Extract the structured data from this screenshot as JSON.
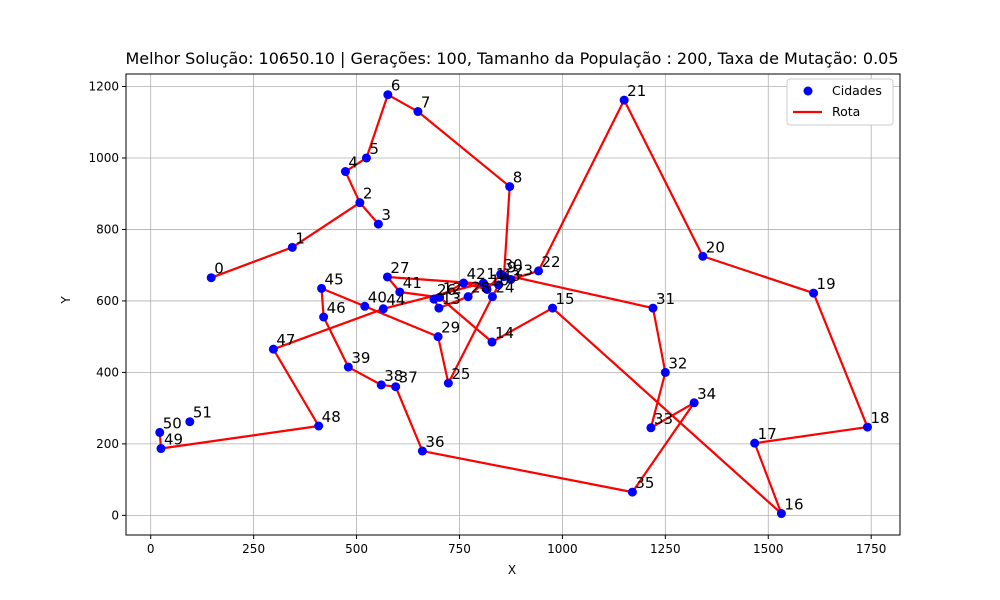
{
  "chart_data": {
    "type": "scatter",
    "title": "Melhor Solução: 10650.10 | Gerações: 100, Tamanho da População : 200, Taxa de Mutação: 0.05",
    "xlabel": "X",
    "ylabel": "Y",
    "xlim": [
      -60,
      1820
    ],
    "ylim": [
      -55,
      1235
    ],
    "x_ticks": [
      0,
      250,
      500,
      750,
      1000,
      1250,
      1500,
      1750
    ],
    "y_ticks": [
      0,
      200,
      400,
      600,
      800,
      1000,
      1200
    ],
    "grid": true,
    "legend_position": "top-right",
    "colors": {
      "cities": "#0000ff",
      "route": "#ff0000",
      "grid": "#b0b0b0"
    },
    "series": [
      {
        "name": "Cidades",
        "kind": "scatter"
      },
      {
        "name": "Rota",
        "kind": "line"
      }
    ],
    "cities": [
      {
        "id": "0",
        "x": 147,
        "y": 665
      },
      {
        "id": "1",
        "x": 344,
        "y": 750
      },
      {
        "id": "2",
        "x": 508,
        "y": 875
      },
      {
        "id": "3",
        "x": 553,
        "y": 815
      },
      {
        "id": "4",
        "x": 473,
        "y": 962
      },
      {
        "id": "5",
        "x": 524,
        "y": 1000
      },
      {
        "id": "6",
        "x": 576,
        "y": 1177
      },
      {
        "id": "7",
        "x": 649,
        "y": 1130
      },
      {
        "id": "8",
        "x": 872,
        "y": 920
      },
      {
        "id": "9",
        "x": 858,
        "y": 668
      },
      {
        "id": "10",
        "x": 817,
        "y": 632
      },
      {
        "id": "11",
        "x": 808,
        "y": 650
      },
      {
        "id": "12",
        "x": 702,
        "y": 610
      },
      {
        "id": "13",
        "x": 700,
        "y": 580
      },
      {
        "id": "14",
        "x": 829,
        "y": 485
      },
      {
        "id": "15",
        "x": 976,
        "y": 580
      },
      {
        "id": "16",
        "x": 1532,
        "y": 5
      },
      {
        "id": "17",
        "x": 1467,
        "y": 202
      },
      {
        "id": "18",
        "x": 1741,
        "y": 247
      },
      {
        "id": "19",
        "x": 1610,
        "y": 622
      },
      {
        "id": "20",
        "x": 1341,
        "y": 725
      },
      {
        "id": "21",
        "x": 1150,
        "y": 1162
      },
      {
        "id": "22",
        "x": 942,
        "y": 684
      },
      {
        "id": "23",
        "x": 875,
        "y": 660
      },
      {
        "id": "24",
        "x": 830,
        "y": 612
      },
      {
        "id": "25",
        "x": 723,
        "y": 370
      },
      {
        "id": "26",
        "x": 688,
        "y": 605
      },
      {
        "id": "27",
        "x": 575,
        "y": 667
      },
      {
        "id": "28",
        "x": 771,
        "y": 612
      },
      {
        "id": "29",
        "x": 698,
        "y": 500
      },
      {
        "id": "30",
        "x": 850,
        "y": 675
      },
      {
        "id": "31",
        "x": 1220,
        "y": 580
      },
      {
        "id": "32",
        "x": 1250,
        "y": 400
      },
      {
        "id": "33",
        "x": 1215,
        "y": 245
      },
      {
        "id": "34",
        "x": 1320,
        "y": 315
      },
      {
        "id": "35",
        "x": 1170,
        "y": 65
      },
      {
        "id": "36",
        "x": 660,
        "y": 180
      },
      {
        "id": "37",
        "x": 595,
        "y": 360
      },
      {
        "id": "38",
        "x": 560,
        "y": 365
      },
      {
        "id": "39",
        "x": 480,
        "y": 415
      },
      {
        "id": "40",
        "x": 520,
        "y": 585
      },
      {
        "id": "41",
        "x": 605,
        "y": 625
      },
      {
        "id": "42",
        "x": 760,
        "y": 650
      },
      {
        "id": "43",
        "x": 845,
        "y": 645
      },
      {
        "id": "44",
        "x": 565,
        "y": 578
      },
      {
        "id": "45",
        "x": 415,
        "y": 635
      },
      {
        "id": "46",
        "x": 420,
        "y": 555
      },
      {
        "id": "47",
        "x": 298,
        "y": 465
      },
      {
        "id": "48",
        "x": 408,
        "y": 250
      },
      {
        "id": "49",
        "x": 25,
        "y": 187
      },
      {
        "id": "50",
        "x": 22,
        "y": 232
      },
      {
        "id": "51",
        "x": 95,
        "y": 262
      }
    ],
    "route": [
      "0",
      "1",
      "2",
      "3",
      "2",
      "4",
      "5",
      "6",
      "7",
      "8",
      "9",
      "23",
      "22",
      "21",
      "20",
      "19",
      "18",
      "17",
      "16",
      "15",
      "14",
      "12",
      "41",
      "27",
      "43",
      "24",
      "25",
      "29",
      "40",
      "45",
      "46",
      "39",
      "38",
      "37",
      "36",
      "35",
      "34",
      "33",
      "32",
      "31",
      "30",
      "10",
      "42",
      "26",
      "13",
      "28",
      "11",
      "44",
      "47",
      "48",
      "49",
      "50"
    ]
  }
}
